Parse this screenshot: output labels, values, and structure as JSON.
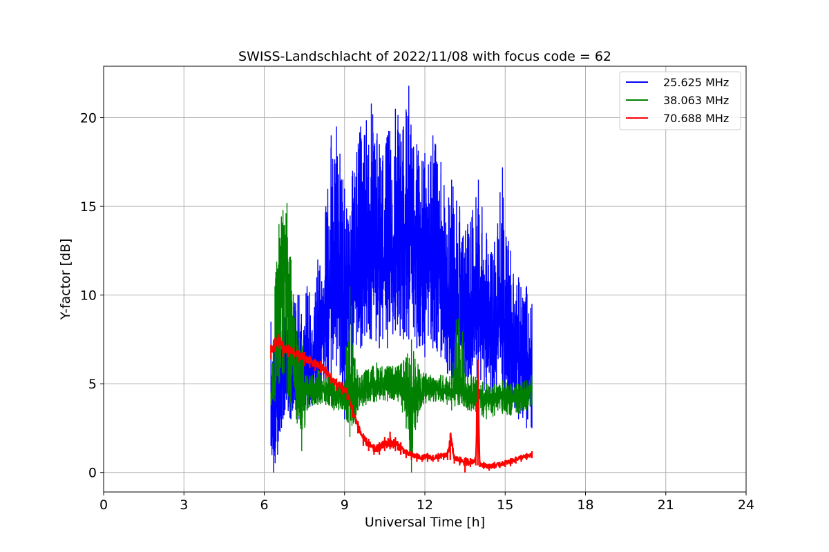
{
  "chart_data": {
    "type": "line",
    "title": "SWISS-Landschlacht of 2022/11/08 with focus code = 62",
    "xlabel": "Universal Time [h]",
    "ylabel": "Y-factor [dB]",
    "xlim": [
      0,
      24
    ],
    "ylim": [
      -1.1,
      22.9
    ],
    "x_ticks": [
      0,
      3,
      6,
      9,
      12,
      15,
      18,
      21,
      24
    ],
    "x_tick_labels": [
      "0",
      "3",
      "6",
      "9",
      "12",
      "15",
      "18",
      "21",
      "24"
    ],
    "y_ticks": [
      0,
      5,
      10,
      15,
      20
    ],
    "y_tick_labels": [
      "0",
      "5",
      "10",
      "15",
      "20"
    ],
    "grid": true,
    "legend_position": "top-right",
    "series": [
      {
        "name": "25.625 MHz",
        "color": "#0000ff",
        "x": [
          6.25,
          6.35,
          6.5,
          6.7,
          7.0,
          7.3,
          7.6,
          8.0,
          8.3,
          8.5,
          8.7,
          9.0,
          9.3,
          9.6,
          10.0,
          10.3,
          10.6,
          10.9,
          11.2,
          11.4,
          11.7,
          12.0,
          12.3,
          12.6,
          13.0,
          13.3,
          13.6,
          14.0,
          14.3,
          14.6,
          14.9,
          15.2,
          15.5,
          15.8,
          16.0
        ],
        "y": [
          3.5,
          2.0,
          5.0,
          6.0,
          6.5,
          5.0,
          5.5,
          6.5,
          8.0,
          11.0,
          12.0,
          9.0,
          10.5,
          12.0,
          12.5,
          11.5,
          12.0,
          12.5,
          13.0,
          14.0,
          12.5,
          11.5,
          12.5,
          11.0,
          9.5,
          9.0,
          8.5,
          9.5,
          8.0,
          8.0,
          9.0,
          7.0,
          6.5,
          6.5,
          6.0
        ],
        "low": [
          1.5,
          0.0,
          1.0,
          3.0,
          3.0,
          3.0,
          3.5,
          4.0,
          5.0,
          5.5,
          6.0,
          3.0,
          5.5,
          7.0,
          7.5,
          7.0,
          7.0,
          8.0,
          7.5,
          7.5,
          7.0,
          6.5,
          7.0,
          6.5,
          5.0,
          5.5,
          5.0,
          5.0,
          4.5,
          4.5,
          4.5,
          3.5,
          3.0,
          2.5,
          2.5
        ],
        "high": [
          8.5,
          7.5,
          7.5,
          9.0,
          10.0,
          10.0,
          10.5,
          12.0,
          15.0,
          19.0,
          19.5,
          16.0,
          17.0,
          19.5,
          20.8,
          18.5,
          19.0,
          20.5,
          19.5,
          21.8,
          18.5,
          18.0,
          19.0,
          17.5,
          16.5,
          15.0,
          14.0,
          16.5,
          13.5,
          13.0,
          17.2,
          12.5,
          11.0,
          10.5,
          9.5
        ]
      },
      {
        "name": "38.063 MHz",
        "color": "#008000",
        "x": [
          6.25,
          6.4,
          6.55,
          6.7,
          6.85,
          7.0,
          7.2,
          7.4,
          7.6,
          7.8,
          8.0,
          8.3,
          8.6,
          9.0,
          9.2,
          9.5,
          9.8,
          10.2,
          10.6,
          11.0,
          11.3,
          11.5,
          11.8,
          12.2,
          12.6,
          13.0,
          13.3,
          13.6,
          14.0,
          14.3,
          14.6,
          14.9,
          15.2,
          15.5,
          15.8,
          16.0
        ],
        "y": [
          4.0,
          5.0,
          12.0,
          12.5,
          11.5,
          8.0,
          4.5,
          4.2,
          4.5,
          4.8,
          4.6,
          4.7,
          4.5,
          4.2,
          4.6,
          4.4,
          4.6,
          5.0,
          4.8,
          5.0,
          4.6,
          4.2,
          4.4,
          4.8,
          4.6,
          4.5,
          4.6,
          4.4,
          4.3,
          4.2,
          4.3,
          4.4,
          4.2,
          4.3,
          4.5,
          4.8
        ],
        "low": [
          3.8,
          4.0,
          5.0,
          5.5,
          4.5,
          3.5,
          3.0,
          1.2,
          3.5,
          3.8,
          3.8,
          3.8,
          3.5,
          3.5,
          2.0,
          3.5,
          3.8,
          4.0,
          4.0,
          4.0,
          2.5,
          0.0,
          3.5,
          4.0,
          4.0,
          3.5,
          3.8,
          3.5,
          3.2,
          3.0,
          3.2,
          3.3,
          3.2,
          3.3,
          3.5,
          3.8
        ],
        "high": [
          4.5,
          10.5,
          14.0,
          14.8,
          15.2,
          12.0,
          8.0,
          7.5,
          5.5,
          5.5,
          5.8,
          5.5,
          5.3,
          5.0,
          10.5,
          5.5,
          5.8,
          6.2,
          6.0,
          6.0,
          6.5,
          7.5,
          5.8,
          5.5,
          5.5,
          5.5,
          11.0,
          5.5,
          5.5,
          5.0,
          5.0,
          5.2,
          5.0,
          5.0,
          5.2,
          5.5
        ]
      },
      {
        "name": "70.688 MHz",
        "color": "#ff0000",
        "x": [
          6.25,
          6.4,
          6.55,
          6.7,
          6.9,
          7.1,
          7.3,
          7.5,
          7.7,
          7.9,
          8.1,
          8.3,
          8.5,
          8.7,
          8.9,
          9.1,
          9.3,
          9.5,
          9.7,
          9.9,
          10.1,
          10.3,
          10.5,
          10.7,
          10.9,
          11.1,
          11.3,
          11.5,
          11.7,
          11.9,
          12.1,
          12.3,
          12.5,
          12.7,
          12.85,
          12.95,
          13.1,
          13.3,
          13.5,
          13.7,
          13.9,
          13.98,
          14.05,
          14.2,
          14.4,
          14.6,
          14.8,
          15.0,
          15.2,
          15.4,
          15.6,
          15.8,
          16.0
        ],
        "y": [
          6.8,
          7.2,
          7.5,
          7.0,
          6.9,
          6.8,
          6.6,
          6.5,
          6.3,
          6.1,
          6.0,
          5.7,
          5.3,
          5.0,
          4.8,
          4.5,
          3.5,
          2.6,
          1.9,
          1.6,
          1.3,
          1.4,
          1.6,
          1.7,
          1.6,
          1.4,
          1.1,
          1.0,
          0.9,
          0.85,
          0.9,
          0.8,
          0.9,
          0.95,
          1.0,
          2.0,
          0.8,
          0.7,
          0.6,
          0.6,
          0.7,
          5.3,
          0.5,
          0.4,
          0.35,
          0.4,
          0.45,
          0.55,
          0.6,
          0.75,
          0.85,
          0.9,
          1.0
        ],
        "low": [
          6.4,
          6.8,
          7.0,
          6.5,
          6.5,
          6.4,
          6.2,
          6.0,
          5.9,
          5.7,
          5.6,
          5.3,
          5.0,
          4.6,
          4.4,
          4.1,
          3.1,
          2.2,
          1.5,
          1.2,
          1.0,
          1.0,
          1.2,
          1.3,
          1.2,
          1.0,
          0.8,
          0.7,
          0.6,
          0.6,
          0.6,
          0.6,
          0.6,
          0.7,
          0.7,
          0.7,
          0.5,
          0.4,
          0.0,
          0.3,
          0.4,
          0.4,
          0.3,
          0.2,
          0.1,
          0.2,
          0.25,
          0.3,
          0.35,
          0.5,
          0.6,
          0.7,
          0.8
        ],
        "high": [
          7.2,
          7.6,
          7.8,
          7.4,
          7.2,
          7.1,
          6.9,
          6.8,
          6.6,
          6.4,
          6.3,
          6.0,
          5.6,
          5.3,
          5.1,
          4.8,
          3.8,
          2.9,
          2.2,
          1.9,
          1.6,
          1.7,
          2.0,
          2.3,
          2.0,
          1.7,
          1.3,
          1.2,
          1.1,
          1.0,
          1.1,
          1.0,
          1.1,
          1.1,
          1.2,
          2.2,
          1.0,
          0.9,
          0.8,
          0.8,
          0.9,
          5.4,
          0.7,
          0.6,
          0.5,
          0.6,
          0.6,
          0.7,
          0.8,
          0.9,
          1.0,
          1.1,
          1.2
        ]
      }
    ]
  }
}
